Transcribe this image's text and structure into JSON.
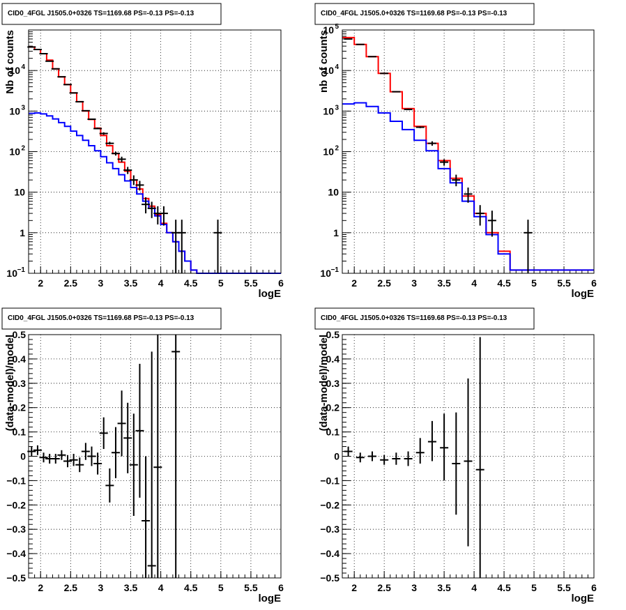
{
  "chart_data": [
    {
      "type": "line",
      "title": "CID0_4FGL J1505.0+0326 TS=1169.68 PS=-0.13 PS=-0.13",
      "xlabel": "logE",
      "ylabel": "Nb of counts",
      "xlim": [
        1.8,
        6.0
      ],
      "ylim": [
        0.1,
        100000
      ],
      "yscale": "log",
      "grid": true,
      "xticks": [
        "2",
        "2.5",
        "3",
        "3.5",
        "4",
        "4.5",
        "5",
        "5.5",
        "6"
      ],
      "yticks": [
        {
          "value": 0.1,
          "label": "10",
          "sup": "−1"
        },
        {
          "value": 1,
          "label": "1",
          "sup": ""
        },
        {
          "value": 10,
          "label": "10",
          "sup": ""
        },
        {
          "value": 100,
          "label": "10",
          "sup": "2"
        },
        {
          "value": 1000,
          "label": "10",
          "sup": "3"
        },
        {
          "value": 10000,
          "label": "10",
          "sup": "4"
        }
      ],
      "series": [
        {
          "color": "#ff0000",
          "style": "step",
          "edges": [
            1.8,
            1.9,
            2.0,
            2.1,
            2.2,
            2.3,
            2.4,
            2.5,
            2.6,
            2.7,
            2.8,
            2.9,
            3.0,
            3.1,
            3.2,
            3.3,
            3.4,
            3.5,
            3.6,
            3.7,
            3.8,
            3.9,
            4.0,
            4.1,
            4.2,
            4.3,
            4.4,
            4.5,
            4.6,
            6.0
          ],
          "values": [
            38000,
            33000,
            26000,
            18000,
            11000,
            7000,
            4500,
            2800,
            1700,
            1000,
            620,
            380,
            250,
            140,
            90,
            55,
            33,
            20,
            12,
            7,
            4.5,
            2.8,
            1.7,
            1.0,
            0.6,
            0.35,
            0.2,
            0.12,
            0.1
          ]
        },
        {
          "color": "#0000ff",
          "style": "step",
          "edges": [
            1.8,
            1.9,
            2.0,
            2.1,
            2.2,
            2.3,
            2.4,
            2.5,
            2.6,
            2.7,
            2.8,
            2.9,
            3.0,
            3.1,
            3.2,
            3.3,
            3.4,
            3.5,
            3.6,
            3.7,
            3.8,
            3.9,
            4.0,
            4.1,
            4.2,
            4.3,
            4.4,
            4.5,
            4.6,
            6.0
          ],
          "values": [
            880,
            900,
            850,
            760,
            640,
            520,
            420,
            320,
            250,
            190,
            140,
            105,
            75,
            53,
            38,
            27,
            19,
            13,
            9,
            6,
            4,
            2.6,
            1.6,
            1.0,
            0.6,
            0.35,
            0.2,
            0.12,
            0.1
          ]
        }
      ],
      "points": {
        "x": [
          1.85,
          1.95,
          2.05,
          2.15,
          2.25,
          2.35,
          2.45,
          2.55,
          2.65,
          2.75,
          2.85,
          2.95,
          3.05,
          3.15,
          3.25,
          3.35,
          3.45,
          3.55,
          3.65,
          3.75,
          3.85,
          3.95,
          4.05,
          4.25,
          4.35,
          4.95
        ],
        "y": [
          38000,
          33000,
          26000,
          17000,
          11000,
          7000,
          4500,
          2800,
          1700,
          1020,
          630,
          370,
          280,
          160,
          90,
          65,
          35,
          20,
          15,
          5,
          4,
          3,
          3,
          1,
          1,
          1
        ],
        "ylo": [
          37000,
          32000,
          25500,
          16700,
          10800,
          6900,
          4400,
          2750,
          1660,
          990,
          610,
          360,
          260,
          150,
          80,
          55,
          28,
          15,
          11,
          3,
          2.3,
          1.6,
          1.5,
          0.1,
          0.1,
          0.1
        ],
        "yhi": [
          39000,
          34000,
          26500,
          17300,
          11200,
          7100,
          4600,
          2850,
          1740,
          1050,
          650,
          390,
          300,
          175,
          100,
          75,
          42,
          26,
          19,
          7.5,
          5.8,
          4.5,
          4.5,
          2.1,
          2.1,
          2.1
        ]
      }
    },
    {
      "type": "line",
      "title": "CID0_4FGL J1505.0+0326 TS=1169.68 PS=-0.13 PS=-0.13",
      "xlabel": "logE",
      "ylabel": "nb of counts",
      "xlim": [
        1.8,
        6.0
      ],
      "ylim": [
        0.1,
        100000
      ],
      "yscale": "log",
      "grid": true,
      "xticks": [
        "2",
        "2.5",
        "3",
        "3.5",
        "4",
        "4.5",
        "5",
        "5.5",
        "6"
      ],
      "yticks": [
        {
          "value": 0.1,
          "label": "10",
          "sup": "−1"
        },
        {
          "value": 1,
          "label": "1",
          "sup": ""
        },
        {
          "value": 10,
          "label": "10",
          "sup": ""
        },
        {
          "value": 100,
          "label": "10",
          "sup": "2"
        },
        {
          "value": 1000,
          "label": "10",
          "sup": "3"
        },
        {
          "value": 10000,
          "label": "10",
          "sup": "4"
        },
        {
          "value": 100000,
          "label": "10",
          "sup": "5"
        }
      ],
      "series": [
        {
          "color": "#ff0000",
          "style": "step",
          "edges": [
            1.8,
            2.0,
            2.2,
            2.4,
            2.6,
            2.8,
            3.0,
            3.2,
            3.4,
            3.6,
            3.8,
            4.0,
            4.2,
            4.4,
            4.6,
            6.0
          ],
          "values": [
            65000,
            44000,
            22000,
            8500,
            3000,
            1150,
            420,
            160,
            60,
            22,
            8,
            3,
            1,
            0.35,
            0.12
          ],
          "tail": 0.1
        },
        {
          "color": "#0000ff",
          "style": "step",
          "edges": [
            1.8,
            2.0,
            2.2,
            2.4,
            2.6,
            2.8,
            3.0,
            3.2,
            3.4,
            3.6,
            3.8,
            4.0,
            4.2,
            4.4,
            4.6,
            6.0
          ],
          "values": [
            1500,
            1600,
            1300,
            900,
            560,
            350,
            190,
            105,
            38,
            17,
            6,
            2.5,
            0.9,
            0.3,
            0.12
          ],
          "tail": 0.1
        }
      ],
      "points": {
        "x": [
          1.9,
          2.1,
          2.3,
          2.5,
          2.7,
          2.9,
          3.1,
          3.3,
          3.5,
          3.7,
          3.9,
          4.1,
          4.3,
          4.9
        ],
        "y": [
          60000,
          44000,
          22000,
          8500,
          3000,
          1100,
          400,
          160,
          55,
          20,
          9,
          3,
          2,
          1
        ],
        "ylo": [
          59000,
          43000,
          21500,
          8300,
          2900,
          1050,
          380,
          140,
          45,
          14,
          5.5,
          1.5,
          0.8,
          0.1
        ],
        "yhi": [
          61000,
          45000,
          22500,
          8700,
          3100,
          1150,
          420,
          180,
          65,
          27,
          13,
          4.8,
          3.5,
          2.1
        ]
      }
    },
    {
      "type": "scatter",
      "title": "CID0_4FGL J1505.0+0326 TS=1169.68 PS=-0.13 PS=-0.13",
      "xlabel": "logE",
      "ylabel": "(data-model)/model",
      "xlim": [
        1.8,
        6.0
      ],
      "ylim": [
        -0.5,
        0.5
      ],
      "grid": true,
      "xticks": [
        "2",
        "2.5",
        "3",
        "3.5",
        "4",
        "4.5",
        "5",
        "5.5",
        "6"
      ],
      "yticks": [
        "−0.5",
        "−0.4",
        "−0.3",
        "−0.2",
        "−0.1",
        "0",
        "0.1",
        "0.2",
        "0.3",
        "0.4",
        "0.5"
      ],
      "points": {
        "x": [
          1.85,
          1.95,
          2.05,
          2.15,
          2.25,
          2.35,
          2.45,
          2.55,
          2.65,
          2.75,
          2.85,
          2.95,
          3.05,
          3.15,
          3.25,
          3.35,
          3.45,
          3.55,
          3.65,
          3.75,
          3.85,
          3.95,
          4.25
        ],
        "y": [
          0.02,
          0.025,
          -0.005,
          -0.01,
          -0.01,
          0.005,
          -0.02,
          -0.015,
          -0.035,
          0.02,
          0.0,
          -0.03,
          0.095,
          -0.12,
          0.015,
          0.135,
          0.075,
          -0.035,
          0.105,
          -0.265,
          -0.45,
          -0.045,
          0.43
        ],
        "ylo": [
          0.0,
          0.005,
          -0.025,
          -0.03,
          -0.03,
          -0.015,
          -0.045,
          -0.04,
          -0.065,
          -0.015,
          -0.04,
          -0.075,
          0.03,
          -0.19,
          -0.09,
          0.0,
          -0.07,
          -0.245,
          -0.17,
          -0.5,
          -0.5,
          -0.5,
          -0.5
        ],
        "yhi": [
          0.04,
          0.045,
          0.015,
          0.01,
          0.01,
          0.025,
          0.005,
          0.01,
          -0.005,
          0.055,
          0.04,
          0.015,
          0.16,
          -0.05,
          0.12,
          0.27,
          0.22,
          0.175,
          0.38,
          0.0,
          0.43,
          0.5,
          0.5
        ]
      }
    },
    {
      "type": "scatter",
      "title": "CID0_4FGL J1505.0+0326 TS=1169.68 PS=-0.13 PS=-0.13",
      "xlabel": "logE",
      "ylabel": "(data-model)/model",
      "xlim": [
        1.8,
        6.0
      ],
      "ylim": [
        -0.5,
        0.5
      ],
      "grid": true,
      "xticks": [
        "2",
        "2.5",
        "3",
        "3.5",
        "4",
        "4.5",
        "5",
        "5.5",
        "6"
      ],
      "yticks": [
        "−0.5",
        "−0.4",
        "−0.3",
        "−0.2",
        "−0.1",
        "0",
        "0.1",
        "0.2",
        "0.3",
        "0.4",
        "0.5"
      ],
      "points": {
        "x": [
          1.9,
          2.1,
          2.3,
          2.5,
          2.7,
          2.9,
          3.1,
          3.3,
          3.5,
          3.7,
          3.9,
          4.1
        ],
        "y": [
          0.02,
          -0.005,
          0.0,
          -0.015,
          -0.01,
          -0.01,
          0.015,
          0.06,
          0.035,
          -0.03,
          -0.02,
          -0.055
        ],
        "ylo": [
          0.0,
          -0.025,
          -0.02,
          -0.035,
          -0.035,
          -0.04,
          -0.03,
          -0.02,
          -0.1,
          -0.24,
          -0.37,
          -0.5
        ],
        "yhi": [
          0.04,
          0.015,
          0.02,
          0.005,
          0.015,
          0.02,
          0.075,
          0.145,
          0.175,
          0.18,
          0.32,
          0.49
        ]
      }
    }
  ]
}
